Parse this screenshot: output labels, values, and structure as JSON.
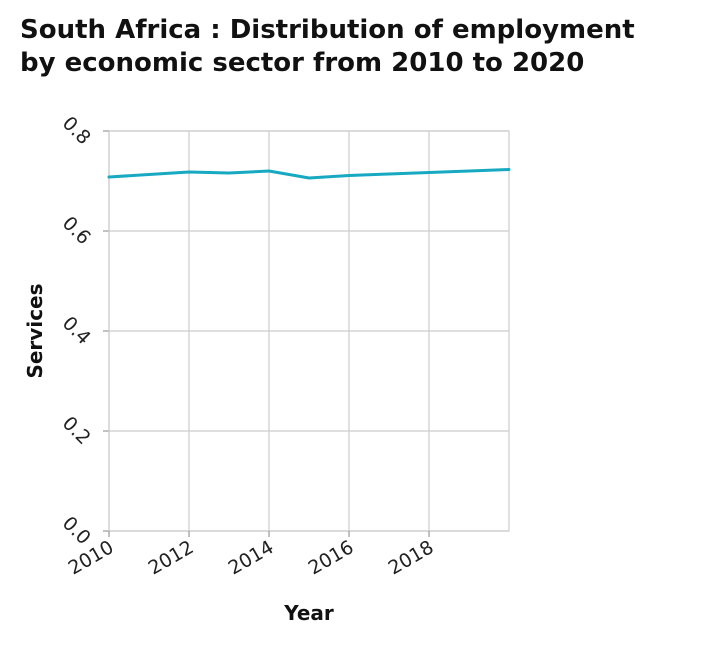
{
  "chart_data": {
    "type": "line",
    "title_lines": [
      "South Africa : Distribution of employment",
      "by economic sector from 2010 to 2020"
    ],
    "xlabel": "Year",
    "ylabel": "Services",
    "xlim": [
      2010,
      2020
    ],
    "ylim": [
      0,
      0.8
    ],
    "x_ticks": [
      2010,
      2012,
      2014,
      2016,
      2018
    ],
    "x_tick_labels": [
      "2010",
      "2012",
      "2014",
      "2016",
      "2018"
    ],
    "y_ticks": [
      0.0,
      0.2,
      0.4,
      0.6,
      0.8
    ],
    "y_tick_labels": [
      "0.0",
      "0.2",
      "0.4",
      "0.6",
      "0.8"
    ],
    "grid": true,
    "series": [
      {
        "color": "#17a9c1",
        "x": [
          2010,
          2011,
          2012,
          2013,
          2014,
          2015,
          2016,
          2017,
          2018,
          2019,
          2020
        ],
        "values": [
          0.708,
          0.713,
          0.718,
          0.716,
          0.72,
          0.706,
          0.711,
          0.714,
          0.717,
          0.72,
          0.723
        ]
      }
    ]
  }
}
